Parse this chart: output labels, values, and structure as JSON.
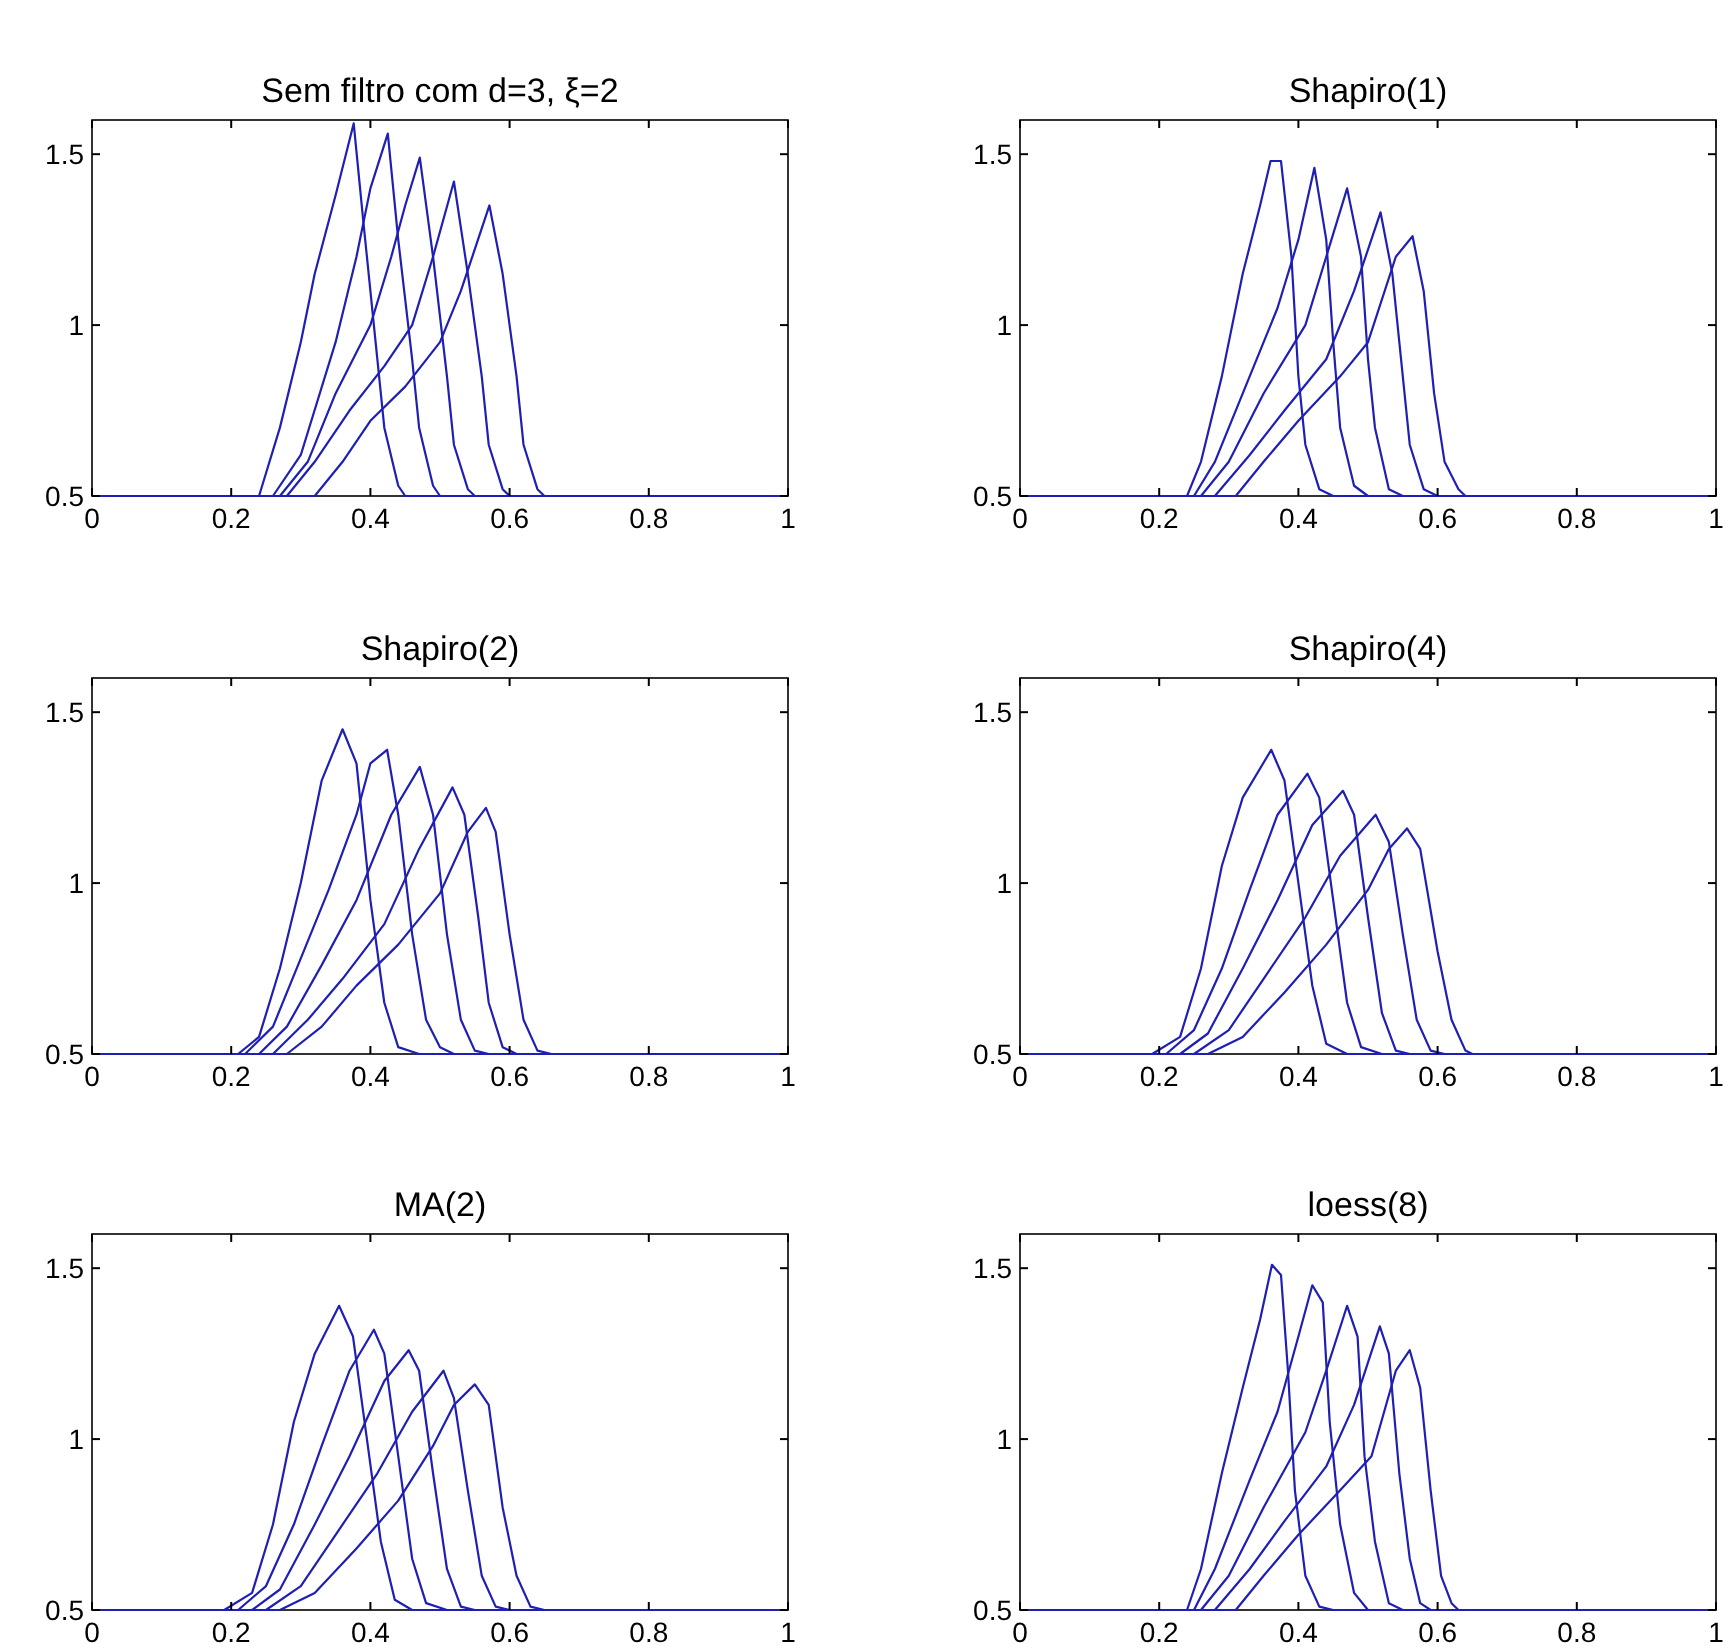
{
  "chart_data": [
    {
      "type": "line",
      "title": "Sem filtro com d=3, ξ=2",
      "xlim": [
        0,
        1
      ],
      "ylim": [
        0.5,
        1.6
      ],
      "xticks": [
        0,
        0.2,
        0.4,
        0.6,
        0.8,
        1
      ],
      "yticks": [
        0.5,
        1,
        1.5
      ],
      "series": [
        {
          "color": "#1f1fb4",
          "x": [
            0,
            0.24,
            0.27,
            0.3,
            0.32,
            0.35,
            0.376,
            0.39,
            0.41,
            0.42,
            0.44,
            0.45,
            1
          ],
          "values": [
            0.5,
            0.5,
            0.7,
            0.95,
            1.15,
            1.38,
            1.59,
            1.3,
            0.9,
            0.7,
            0.53,
            0.5,
            0.5
          ]
        },
        {
          "color": "#1f1fb4",
          "x": [
            0,
            0.26,
            0.3,
            0.35,
            0.38,
            0.4,
            0.425,
            0.44,
            0.46,
            0.47,
            0.49,
            0.5,
            1
          ],
          "values": [
            0.5,
            0.5,
            0.62,
            0.95,
            1.2,
            1.4,
            1.56,
            1.25,
            0.9,
            0.7,
            0.53,
            0.5,
            0.5
          ]
        },
        {
          "color": "#1f1fb4",
          "x": [
            0,
            0.27,
            0.31,
            0.35,
            0.4,
            0.43,
            0.45,
            0.471,
            0.49,
            0.51,
            0.52,
            0.54,
            0.55,
            1
          ],
          "values": [
            0.5,
            0.5,
            0.6,
            0.8,
            1,
            1.2,
            1.35,
            1.49,
            1.2,
            0.85,
            0.65,
            0.52,
            0.5,
            0.5
          ]
        },
        {
          "color": "#1f1fb4",
          "x": [
            0,
            0.28,
            0.32,
            0.37,
            0.42,
            0.46,
            0.49,
            0.52,
            0.54,
            0.56,
            0.57,
            0.59,
            0.6,
            1
          ],
          "values": [
            0.5,
            0.5,
            0.6,
            0.75,
            0.88,
            1,
            1.2,
            1.42,
            1.15,
            0.85,
            0.65,
            0.52,
            0.5,
            0.5
          ]
        },
        {
          "color": "#1f1fb4",
          "x": [
            0,
            0.32,
            0.36,
            0.4,
            0.45,
            0.5,
            0.53,
            0.571,
            0.59,
            0.61,
            0.62,
            0.64,
            0.65,
            1
          ],
          "values": [
            0.5,
            0.5,
            0.6,
            0.72,
            0.82,
            0.95,
            1.1,
            1.35,
            1.15,
            0.85,
            0.65,
            0.52,
            0.5,
            0.5
          ]
        }
      ]
    },
    {
      "type": "line",
      "title": "Shapiro(1)",
      "xlim": [
        0,
        1
      ],
      "ylim": [
        0.5,
        1.6
      ],
      "xticks": [
        0,
        0.2,
        0.4,
        0.6,
        0.8,
        1
      ],
      "yticks": [
        0.5,
        1,
        1.5
      ],
      "series": [
        {
          "color": "#1f1fb4",
          "x": [
            0,
            0.24,
            0.26,
            0.29,
            0.32,
            0.345,
            0.36,
            0.375,
            0.39,
            0.4,
            0.41,
            0.43,
            0.45,
            1
          ],
          "values": [
            0.5,
            0.5,
            0.6,
            0.85,
            1.15,
            1.35,
            1.48,
            1.48,
            1.2,
            0.85,
            0.65,
            0.52,
            0.5,
            0.5
          ]
        },
        {
          "color": "#1f1fb4",
          "x": [
            0,
            0.25,
            0.28,
            0.33,
            0.37,
            0.4,
            0.423,
            0.44,
            0.45,
            0.46,
            0.48,
            0.5,
            1
          ],
          "values": [
            0.5,
            0.5,
            0.6,
            0.85,
            1.05,
            1.25,
            1.46,
            1.25,
            0.95,
            0.7,
            0.53,
            0.5,
            0.5
          ]
        },
        {
          "color": "#1f1fb4",
          "x": [
            0,
            0.26,
            0.3,
            0.35,
            0.41,
            0.44,
            0.47,
            0.49,
            0.5,
            0.51,
            0.53,
            0.55,
            1
          ],
          "values": [
            0.5,
            0.5,
            0.6,
            0.8,
            1,
            1.2,
            1.4,
            1.2,
            0.9,
            0.7,
            0.52,
            0.5,
            0.5
          ]
        },
        {
          "color": "#1f1fb4",
          "x": [
            0,
            0.28,
            0.33,
            0.38,
            0.44,
            0.48,
            0.518,
            0.535,
            0.55,
            0.56,
            0.58,
            0.6,
            1
          ],
          "values": [
            0.5,
            0.5,
            0.62,
            0.75,
            0.9,
            1.1,
            1.33,
            1.15,
            0.85,
            0.65,
            0.52,
            0.5,
            0.5
          ]
        },
        {
          "color": "#1f1fb4",
          "x": [
            0,
            0.31,
            0.35,
            0.4,
            0.46,
            0.5,
            0.54,
            0.564,
            0.58,
            0.595,
            0.61,
            0.63,
            0.64,
            1
          ],
          "values": [
            0.5,
            0.5,
            0.6,
            0.72,
            0.85,
            0.95,
            1.2,
            1.26,
            1.1,
            0.8,
            0.6,
            0.52,
            0.5,
            0.5
          ]
        }
      ]
    },
    {
      "type": "line",
      "title": "Shapiro(2)",
      "xlim": [
        0,
        1
      ],
      "ylim": [
        0.5,
        1.6
      ],
      "xticks": [
        0,
        0.2,
        0.4,
        0.6,
        0.8,
        1
      ],
      "yticks": [
        0.5,
        1,
        1.5
      ],
      "series": [
        {
          "color": "#1f1fb4",
          "x": [
            0,
            0.21,
            0.24,
            0.27,
            0.3,
            0.33,
            0.36,
            0.38,
            0.4,
            0.42,
            0.44,
            0.47,
            1
          ],
          "values": [
            0.5,
            0.5,
            0.55,
            0.75,
            1,
            1.3,
            1.45,
            1.35,
            0.95,
            0.65,
            0.52,
            0.5,
            0.5
          ]
        },
        {
          "color": "#1f1fb4",
          "x": [
            0,
            0.22,
            0.26,
            0.3,
            0.34,
            0.38,
            0.4,
            0.424,
            0.44,
            0.46,
            0.48,
            0.5,
            0.52,
            1
          ],
          "values": [
            0.5,
            0.5,
            0.58,
            0.78,
            0.98,
            1.2,
            1.35,
            1.39,
            1.2,
            0.85,
            0.6,
            0.52,
            0.5,
            0.5
          ]
        },
        {
          "color": "#1f1fb4",
          "x": [
            0,
            0.24,
            0.28,
            0.33,
            0.38,
            0.43,
            0.471,
            0.49,
            0.51,
            0.53,
            0.55,
            0.57,
            1
          ],
          "values": [
            0.5,
            0.5,
            0.58,
            0.76,
            0.95,
            1.2,
            1.34,
            1.2,
            0.85,
            0.6,
            0.51,
            0.5,
            0.5
          ]
        },
        {
          "color": "#1f1fb4",
          "x": [
            0,
            0.26,
            0.31,
            0.36,
            0.42,
            0.47,
            0.518,
            0.535,
            0.555,
            0.57,
            0.59,
            0.61,
            1
          ],
          "values": [
            0.5,
            0.5,
            0.6,
            0.72,
            0.88,
            1.1,
            1.28,
            1.2,
            0.9,
            0.65,
            0.52,
            0.5,
            0.5
          ]
        },
        {
          "color": "#1f1fb4",
          "x": [
            0,
            0.28,
            0.33,
            0.38,
            0.44,
            0.5,
            0.54,
            0.566,
            0.58,
            0.6,
            0.62,
            0.64,
            0.66,
            1
          ],
          "values": [
            0.5,
            0.5,
            0.58,
            0.7,
            0.82,
            0.97,
            1.15,
            1.22,
            1.15,
            0.85,
            0.6,
            0.51,
            0.5,
            0.5
          ]
        }
      ]
    },
    {
      "type": "line",
      "title": "Shapiro(4)",
      "xlim": [
        0,
        1
      ],
      "ylim": [
        0.5,
        1.6
      ],
      "xticks": [
        0,
        0.2,
        0.4,
        0.6,
        0.8,
        1
      ],
      "yticks": [
        0.5,
        1,
        1.5
      ],
      "series": [
        {
          "color": "#1f1fb4",
          "x": [
            0,
            0.19,
            0.23,
            0.26,
            0.29,
            0.32,
            0.361,
            0.38,
            0.4,
            0.42,
            0.44,
            0.47,
            1
          ],
          "values": [
            0.5,
            0.5,
            0.55,
            0.75,
            1.05,
            1.25,
            1.39,
            1.3,
            1,
            0.7,
            0.53,
            0.5,
            0.5
          ]
        },
        {
          "color": "#1f1fb4",
          "x": [
            0,
            0.21,
            0.25,
            0.29,
            0.33,
            0.37,
            0.413,
            0.43,
            0.45,
            0.47,
            0.49,
            0.52,
            1
          ],
          "values": [
            0.5,
            0.5,
            0.57,
            0.75,
            0.98,
            1.2,
            1.32,
            1.25,
            0.95,
            0.65,
            0.52,
            0.5,
            0.5
          ]
        },
        {
          "color": "#1f1fb4",
          "x": [
            0,
            0.23,
            0.27,
            0.32,
            0.37,
            0.42,
            0.464,
            0.48,
            0.5,
            0.52,
            0.54,
            0.56,
            1
          ],
          "values": [
            0.5,
            0.5,
            0.56,
            0.75,
            0.95,
            1.17,
            1.27,
            1.2,
            0.9,
            0.62,
            0.51,
            0.5,
            0.5
          ]
        },
        {
          "color": "#1f1fb4",
          "x": [
            0,
            0.25,
            0.3,
            0.35,
            0.41,
            0.46,
            0.511,
            0.53,
            0.55,
            0.57,
            0.59,
            0.61,
            1
          ],
          "values": [
            0.5,
            0.5,
            0.57,
            0.72,
            0.9,
            1.08,
            1.2,
            1.12,
            0.85,
            0.6,
            0.51,
            0.5,
            0.5
          ]
        },
        {
          "color": "#1f1fb4",
          "x": [
            0,
            0.27,
            0.32,
            0.38,
            0.44,
            0.5,
            0.53,
            0.556,
            0.575,
            0.6,
            0.62,
            0.64,
            0.65,
            1
          ],
          "values": [
            0.5,
            0.5,
            0.55,
            0.68,
            0.82,
            0.98,
            1.1,
            1.16,
            1.1,
            0.8,
            0.6,
            0.51,
            0.5,
            0.5
          ]
        }
      ]
    },
    {
      "type": "line",
      "title": "MA(2)",
      "xlim": [
        0,
        1
      ],
      "ylim": [
        0.5,
        1.6
      ],
      "xticks": [
        0,
        0.2,
        0.4,
        0.6,
        0.8,
        1
      ],
      "yticks": [
        0.5,
        1,
        1.5
      ],
      "series": [
        {
          "color": "#1f1fb4",
          "x": [
            0,
            0.19,
            0.23,
            0.26,
            0.29,
            0.32,
            0.355,
            0.375,
            0.395,
            0.415,
            0.435,
            0.46,
            1
          ],
          "values": [
            0.5,
            0.5,
            0.55,
            0.75,
            1.05,
            1.25,
            1.39,
            1.3,
            1,
            0.7,
            0.53,
            0.5,
            0.5
          ]
        },
        {
          "color": "#1f1fb4",
          "x": [
            0,
            0.21,
            0.25,
            0.29,
            0.33,
            0.37,
            0.405,
            0.42,
            0.44,
            0.46,
            0.48,
            0.51,
            1
          ],
          "values": [
            0.5,
            0.5,
            0.57,
            0.75,
            0.98,
            1.2,
            1.32,
            1.25,
            0.95,
            0.65,
            0.52,
            0.5,
            0.5
          ]
        },
        {
          "color": "#1f1fb4",
          "x": [
            0,
            0.23,
            0.27,
            0.32,
            0.37,
            0.42,
            0.455,
            0.47,
            0.49,
            0.51,
            0.53,
            0.55,
            1
          ],
          "values": [
            0.5,
            0.5,
            0.56,
            0.75,
            0.95,
            1.17,
            1.26,
            1.2,
            0.9,
            0.62,
            0.51,
            0.5,
            0.5
          ]
        },
        {
          "color": "#1f1fb4",
          "x": [
            0,
            0.25,
            0.3,
            0.35,
            0.41,
            0.46,
            0.505,
            0.52,
            0.54,
            0.56,
            0.58,
            0.6,
            1
          ],
          "values": [
            0.5,
            0.5,
            0.57,
            0.72,
            0.9,
            1.08,
            1.2,
            1.12,
            0.85,
            0.6,
            0.51,
            0.5,
            0.5
          ]
        },
        {
          "color": "#1f1fb4",
          "x": [
            0,
            0.27,
            0.32,
            0.38,
            0.44,
            0.49,
            0.52,
            0.55,
            0.57,
            0.59,
            0.61,
            0.63,
            0.65,
            1
          ],
          "values": [
            0.5,
            0.5,
            0.55,
            0.68,
            0.82,
            0.98,
            1.1,
            1.16,
            1.1,
            0.8,
            0.6,
            0.51,
            0.5,
            0.5
          ]
        }
      ]
    },
    {
      "type": "line",
      "title": "loess(8)",
      "xlim": [
        0,
        1
      ],
      "ylim": [
        0.5,
        1.6
      ],
      "xticks": [
        0,
        0.2,
        0.4,
        0.6,
        0.8,
        1
      ],
      "yticks": [
        0.5,
        1,
        1.5
      ],
      "series": [
        {
          "color": "#1f1fb4",
          "x": [
            0,
            0.24,
            0.26,
            0.29,
            0.32,
            0.345,
            0.362,
            0.375,
            0.385,
            0.395,
            0.41,
            0.43,
            0.45,
            1
          ],
          "values": [
            0.5,
            0.5,
            0.62,
            0.9,
            1.15,
            1.35,
            1.51,
            1.48,
            1.2,
            0.85,
            0.6,
            0.51,
            0.5,
            0.5
          ]
        },
        {
          "color": "#1f1fb4",
          "x": [
            0,
            0.25,
            0.28,
            0.33,
            0.37,
            0.4,
            0.42,
            0.435,
            0.445,
            0.46,
            0.48,
            0.5,
            1
          ],
          "values": [
            0.5,
            0.5,
            0.62,
            0.88,
            1.08,
            1.3,
            1.45,
            1.4,
            1.05,
            0.75,
            0.55,
            0.5,
            0.5
          ]
        },
        {
          "color": "#1f1fb4",
          "x": [
            0,
            0.26,
            0.3,
            0.35,
            0.41,
            0.44,
            0.47,
            0.485,
            0.495,
            0.51,
            0.53,
            0.55,
            1
          ],
          "values": [
            0.5,
            0.5,
            0.6,
            0.8,
            1.02,
            1.2,
            1.39,
            1.3,
            0.95,
            0.7,
            0.52,
            0.5,
            0.5
          ]
        },
        {
          "color": "#1f1fb4",
          "x": [
            0,
            0.28,
            0.33,
            0.38,
            0.44,
            0.48,
            0.517,
            0.53,
            0.545,
            0.56,
            0.575,
            0.59,
            1
          ],
          "values": [
            0.5,
            0.5,
            0.62,
            0.76,
            0.92,
            1.1,
            1.33,
            1.25,
            0.9,
            0.65,
            0.52,
            0.5,
            0.5
          ]
        },
        {
          "color": "#1f1fb4",
          "x": [
            0,
            0.31,
            0.35,
            0.4,
            0.46,
            0.505,
            0.54,
            0.56,
            0.575,
            0.59,
            0.605,
            0.62,
            0.63,
            1
          ],
          "values": [
            0.5,
            0.5,
            0.6,
            0.72,
            0.85,
            0.95,
            1.2,
            1.26,
            1.15,
            0.85,
            0.6,
            0.52,
            0.5,
            0.5
          ]
        }
      ]
    }
  ]
}
